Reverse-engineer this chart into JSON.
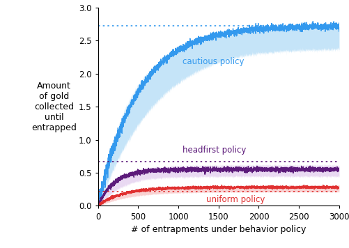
{
  "x_max": 3000,
  "x_min": 0,
  "y_max": 3.0,
  "y_min": 0.0,
  "x_ticks": [
    0,
    500,
    1000,
    1500,
    2000,
    2500,
    3000
  ],
  "y_ticks": [
    0.0,
    0.5,
    1.0,
    1.5,
    2.0,
    2.5,
    3.0
  ],
  "xlabel": "# of entrapments under behavior policy",
  "ylabel": "Amount\nof gold\ncollected\nuntil\nentrapped",
  "cautious_color": "#80c4f0",
  "cautious_line": "#3399ee",
  "cautious_asymptote": 2.72,
  "headfirst_color": "#c9a0e0",
  "headfirst_line": "#5c1a7a",
  "headfirst_asymptote": 0.67,
  "uniform_color": "#f08080",
  "uniform_line": "#e03030",
  "uniform_asymptote": 0.22,
  "cautious_label": "cautious policy",
  "headfirst_label": "headfirst policy",
  "uniform_label": "uniform policy",
  "seed": 42,
  "n_points": 3000
}
